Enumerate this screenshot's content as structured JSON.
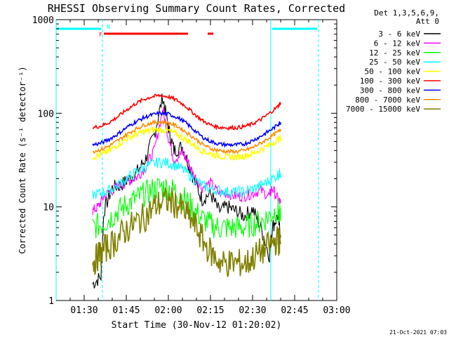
{
  "chart_data": {
    "type": "line",
    "title": "RHESSI Observing Summary Count Rates, Corrected",
    "xlabel": "Start Time (30-Nov-12 01:20:02)",
    "ylabel": "Corrected Count Rate (s⁻¹ detector⁻¹)",
    "x_ticks": [
      "01:30",
      "01:45",
      "02:00",
      "02:15",
      "02:30",
      "02:45",
      "03:00"
    ],
    "x_tick_minutes": [
      10,
      25,
      40,
      55,
      70,
      85,
      100
    ],
    "xlim_minutes": [
      0,
      100
    ],
    "y_scale": "log",
    "ylim": [
      1,
      1000
    ],
    "y_ticks": [
      "1",
      "10",
      "100",
      "1000"
    ],
    "y_tick_values": [
      1,
      10,
      100,
      1000
    ],
    "legend_position": "right",
    "legend_header": [
      "Det 1,3,5,6,9,",
      "Att 0"
    ],
    "footer_date": "21-Oct-2021 07:03",
    "flags": [
      {
        "label": "F",
        "color": "#ff0000",
        "segments": [
          [
            17,
            47
          ],
          [
            54,
            56
          ]
        ]
      },
      {
        "label": "N",
        "color": "#00ffff",
        "segments": [
          [
            0,
            16
          ],
          [
            77,
            93
          ]
        ]
      }
    ],
    "vertical_markers": [
      {
        "x": 0,
        "style": "solid",
        "color": "#00ffff"
      },
      {
        "x": 16.5,
        "style": "dashed",
        "color": "#00ffff"
      },
      {
        "x": 76.5,
        "style": "solid",
        "color": "#00ffff"
      },
      {
        "x": 93.5,
        "style": "dashed",
        "color": "#00ffff"
      }
    ],
    "series": [
      {
        "name": "3 - 6 keV",
        "color": "#000000",
        "x": [
          13,
          16,
          17,
          20,
          23,
          26,
          29,
          32,
          35,
          38,
          40,
          42,
          45,
          47,
          49,
          52,
          55,
          58,
          61,
          64,
          67,
          70,
          73,
          76,
          77,
          79,
          80
        ],
        "y": [
          1.5,
          1.8,
          9,
          16,
          17,
          20,
          24,
          33,
          60,
          150,
          70,
          40,
          44,
          30,
          20,
          12,
          14,
          9,
          10,
          9,
          8,
          9.5,
          6,
          3,
          6,
          8,
          5
        ]
      },
      {
        "name": "6 - 12 keV",
        "color": "#ff00ff",
        "x": [
          13,
          15,
          17,
          20,
          23,
          26,
          29,
          32,
          35,
          38,
          40,
          42,
          45,
          47,
          49,
          52,
          55,
          58,
          61,
          64,
          67,
          70,
          73,
          76,
          77,
          79,
          80
        ],
        "y": [
          9,
          10,
          13,
          15,
          17,
          19,
          21,
          27,
          40,
          110,
          55,
          32,
          38,
          30,
          22,
          16,
          18,
          14,
          14,
          13,
          13,
          14,
          15,
          13,
          16,
          12,
          11
        ]
      },
      {
        "name": "12 - 25 keV",
        "color": "#00ff00",
        "x": [
          13,
          16,
          19,
          22,
          25,
          28,
          31,
          34,
          37,
          40,
          43,
          46,
          49,
          52,
          55,
          58,
          61,
          64,
          67,
          70,
          73,
          76,
          79,
          80
        ],
        "y": [
          6,
          6.5,
          7.5,
          9,
          10.5,
          12,
          13.5,
          15,
          16.5,
          16,
          14.5,
          12,
          9.5,
          7.5,
          6.5,
          6,
          6,
          6,
          6,
          6.5,
          7,
          8,
          9.5,
          7
        ]
      },
      {
        "name": "25 - 50 keV",
        "color": "#00ffff",
        "x": [
          13,
          16,
          19,
          22,
          25,
          28,
          31,
          34,
          37,
          40,
          43,
          46,
          49,
          52,
          55,
          58,
          61,
          64,
          67,
          70,
          73,
          76,
          79,
          80
        ],
        "y": [
          13.5,
          14,
          15,
          17,
          20,
          23,
          26,
          28.5,
          30,
          29.5,
          27.5,
          24,
          20,
          17,
          15.5,
          15,
          14.5,
          14.5,
          14.5,
          15.5,
          17,
          19,
          22,
          23
        ]
      },
      {
        "name": "50 - 100 keV",
        "color": "#ffff00",
        "x": [
          13,
          16,
          19,
          22,
          25,
          28,
          31,
          34,
          37,
          40,
          43,
          46,
          49,
          52,
          55,
          58,
          61,
          64,
          67,
          70,
          73,
          76,
          79,
          80
        ],
        "y": [
          34,
          36,
          40,
          46,
          53,
          59,
          63,
          66,
          67,
          65,
          60,
          53,
          46,
          40,
          37,
          35,
          34,
          34,
          35,
          37,
          41,
          46,
          52,
          55
        ]
      },
      {
        "name": "100 - 300 keV",
        "color": "#ff0000",
        "x": [
          13,
          16,
          19,
          22,
          25,
          28,
          31,
          34,
          37,
          40,
          43,
          46,
          49,
          52,
          55,
          58,
          61,
          64,
          67,
          70,
          73,
          76,
          79,
          80
        ],
        "y": [
          70,
          73,
          80,
          92,
          108,
          125,
          140,
          150,
          155,
          150,
          138,
          120,
          100,
          84,
          75,
          71,
          70,
          70,
          72,
          77,
          86,
          100,
          118,
          130
        ]
      },
      {
        "name": "300 - 800 keV",
        "color": "#0000ff",
        "x": [
          13,
          16,
          19,
          22,
          25,
          28,
          31,
          34,
          37,
          40,
          43,
          46,
          49,
          52,
          55,
          58,
          61,
          64,
          67,
          70,
          73,
          76,
          79,
          80
        ],
        "y": [
          46,
          48,
          53,
          60,
          70,
          80,
          89,
          96,
          100,
          98,
          91,
          80,
          67,
          56,
          50,
          47,
          46,
          46,
          47,
          51,
          57,
          65,
          75,
          80
        ]
      },
      {
        "name": "800 - 7000 keV",
        "color": "#ff8c00",
        "x": [
          13,
          16,
          19,
          22,
          25,
          28,
          31,
          34,
          37,
          40,
          43,
          46,
          49,
          52,
          55,
          58,
          61,
          64,
          67,
          70,
          73,
          76,
          79,
          80
        ],
        "y": [
          39,
          41,
          45,
          51,
          59,
          67,
          74,
          79,
          81,
          79,
          73,
          64,
          55,
          47,
          42,
          40,
          39,
          39,
          40,
          43,
          48,
          55,
          63,
          68
        ]
      },
      {
        "name": "7000 - 15000 keV",
        "color": "#808000",
        "x": [
          13,
          15,
          17,
          20,
          23,
          26,
          29,
          32,
          35,
          38,
          41,
          44,
          47,
          50,
          53,
          56,
          59,
          62,
          65,
          68,
          71,
          74,
          77,
          79,
          80
        ],
        "y": [
          2.5,
          3,
          3.5,
          4,
          5,
          6,
          7,
          8,
          10,
          11.5,
          11.5,
          10,
          8,
          6,
          4,
          3,
          2.5,
          2.5,
          2.5,
          2.5,
          3,
          3.5,
          4,
          4.5,
          4
        ]
      }
    ]
  }
}
